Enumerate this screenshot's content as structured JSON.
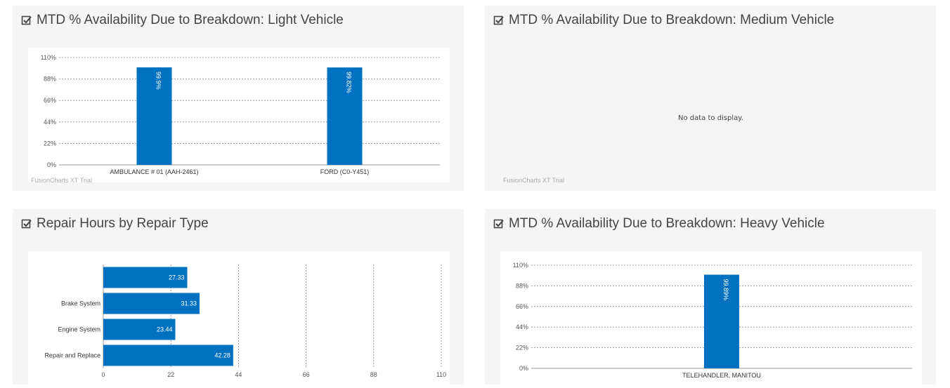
{
  "panels": {
    "light": {
      "title": "MTD % Availability Due to Breakdown: Light Vehicle",
      "watermark": "FusionCharts XT Trial"
    },
    "medium": {
      "title": "MTD % Availability Due to Breakdown: Medium Vehicle",
      "no_data": "No data to display.",
      "watermark": "FusionCharts XT Trial"
    },
    "repair": {
      "title": "Repair Hours by Repair Type"
    },
    "heavy": {
      "title": "MTD % Availability Due to Breakdown: Heavy Vehicle"
    }
  },
  "icons": {
    "title_icon": "check-square-icon"
  },
  "colors": {
    "bar": "#0070c0",
    "axis": "#999999",
    "grid": "#888888",
    "panel_bg": "#f5f5f5"
  },
  "chart_data": [
    {
      "id": "light",
      "type": "bar",
      "categories": [
        "AMBULANCE # 01 (AAH-2461)",
        "FORD (C0-Y451)"
      ],
      "values": [
        99.9,
        99.82
      ],
      "value_labels": [
        "99.9%",
        "99.82%"
      ],
      "y_ticks": [
        "0%",
        "22%",
        "44%",
        "66%",
        "88%",
        "110%"
      ],
      "ylim": [
        0,
        110
      ],
      "grid": true
    },
    {
      "id": "repair",
      "type": "bar",
      "orientation": "horizontal",
      "categories": [
        "",
        "Brake System",
        "Engine System",
        "Repair and Replace"
      ],
      "values": [
        27.33,
        31.33,
        23.44,
        42.28
      ],
      "value_labels": [
        "27.33",
        "31.33",
        "23.44",
        "42.28"
      ],
      "x_ticks": [
        "0",
        "22",
        "44",
        "66",
        "88",
        "110"
      ],
      "xlim": [
        0,
        110
      ],
      "grid": true
    },
    {
      "id": "heavy",
      "type": "bar",
      "categories": [
        "TELEHANDLER, MANITOU"
      ],
      "values": [
        99.89
      ],
      "value_labels": [
        "99.89%"
      ],
      "y_ticks": [
        "0%",
        "22%",
        "44%",
        "66%",
        "88%",
        "110%"
      ],
      "ylim": [
        0,
        110
      ],
      "grid": true
    }
  ]
}
